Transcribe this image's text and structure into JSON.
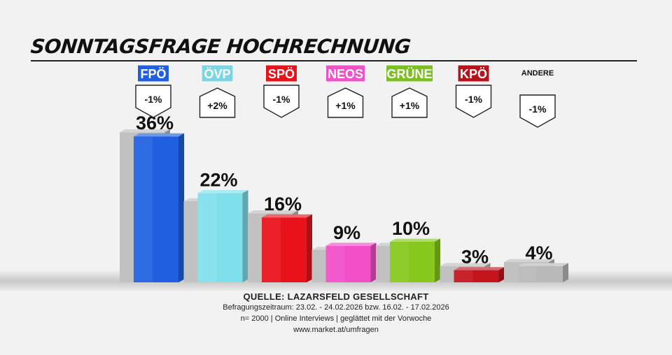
{
  "title": "SONNTAGSFRAGE HOCHRECHNUNG",
  "chart_data": {
    "type": "bar",
    "title": "SONNTAGSFRAGE HOCHRECHNUNG",
    "unit": "%",
    "categories": [
      "FPÖ",
      "ÖVP",
      "SPÖ",
      "NEOS",
      "GRÜNE",
      "KPÖ",
      "ANDERE"
    ],
    "series": [
      {
        "values": [
          36,
          22,
          16,
          9,
          10,
          3,
          4
        ]
      },
      {
        "values": [
          37,
          20,
          17,
          8,
          9,
          4,
          5
        ]
      }
    ],
    "value_labels": [
      "36%",
      "22%",
      "16%",
      "9%",
      "10%",
      "3%",
      "4%"
    ],
    "changes": [
      "-1%",
      "+2%",
      "-1%",
      "+1%",
      "+1%",
      "-1%",
      "-1%"
    ],
    "colors": [
      "#1f5fe0",
      "#7fe0ec",
      "#e8121a",
      "#f04fc8",
      "#86c81e",
      "#c4141c",
      "#b9b9b9"
    ],
    "label_backgrounds": [
      "#1f5fe0",
      "#7ad6e2",
      "#e8121a",
      "#f050c8",
      "#7cbf22",
      "#b5121c",
      "none"
    ],
    "label_text_colors": [
      "#ffffff",
      "#ffffff",
      "#ffffff",
      "#ffffff",
      "#ffffff",
      "#ffffff",
      "#111111"
    ],
    "ylim": [
      0,
      40
    ],
    "grid": false,
    "legend": "none"
  },
  "source": {
    "title": "QUELLE: LAZARSFELD GESELLSCHAFT",
    "line1": "Befragungszeitraum: 23.02. - 24.02.2026 bzw. 16.02. - 17.02.2026",
    "line2": "n= 2000 | Online Interviews | geglättet mit der Vorwoche",
    "line3": "www.market.at/umfragen"
  }
}
